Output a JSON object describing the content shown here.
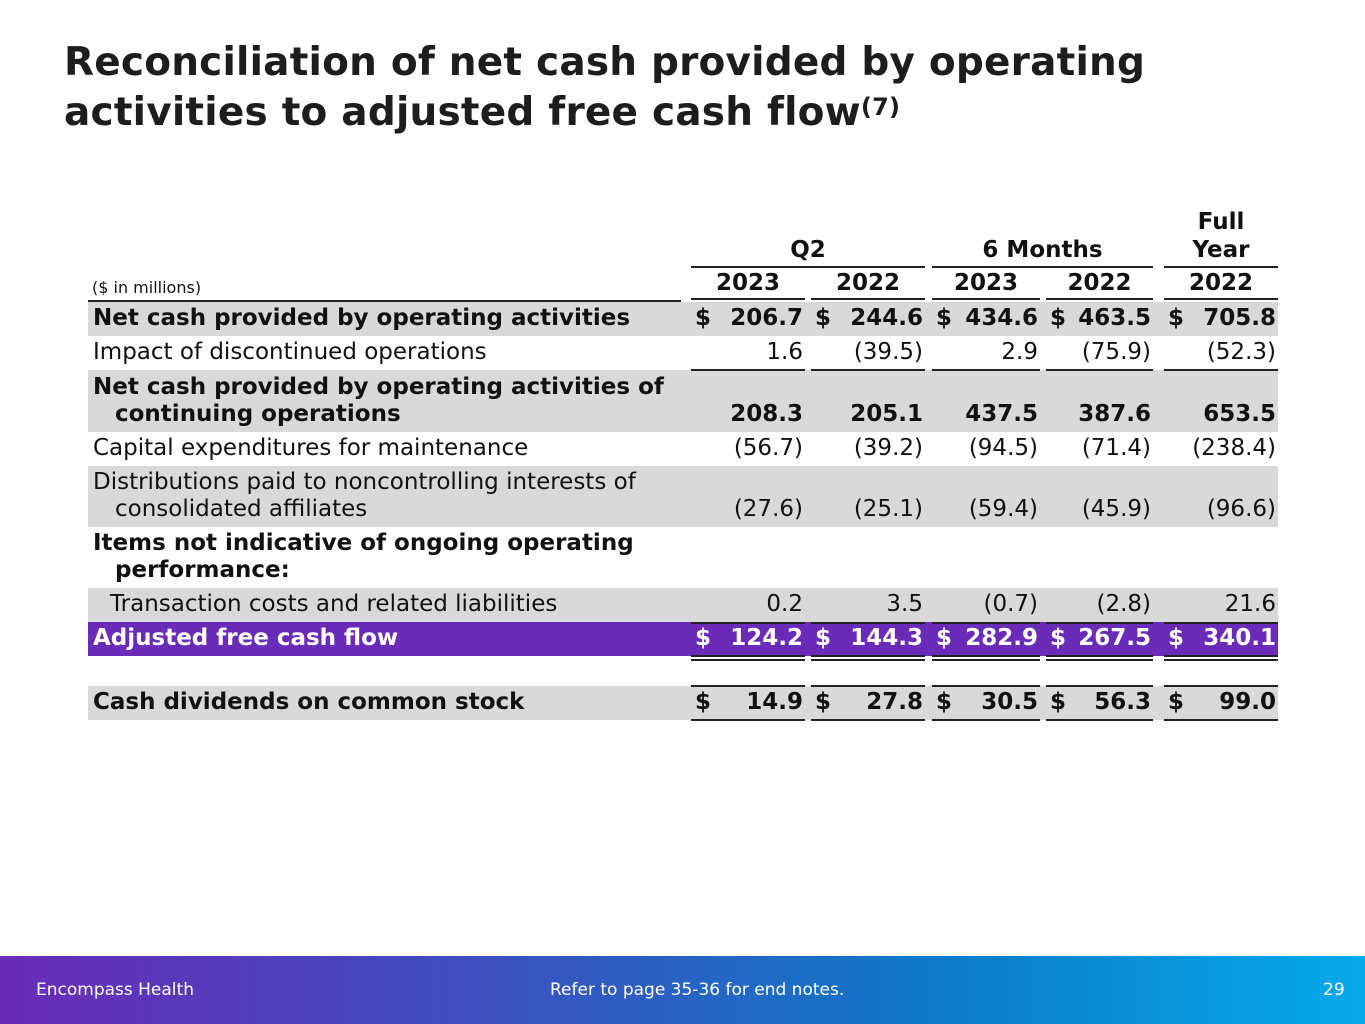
{
  "title": {
    "line1": "Reconciliation of net cash provided by operating",
    "line2": "activities to adjusted free cash flow",
    "sup": "(7)"
  },
  "table": {
    "units": "($ in millions)",
    "groups": [
      "Q2",
      "6 Months",
      "Full",
      "Year"
    ],
    "years": [
      "2023",
      "2022",
      "2023",
      "2022",
      "2022"
    ],
    "rows": [
      {
        "label": "Net cash provided by operating activities",
        "values": [
          [
            "$",
            "206.7"
          ],
          [
            "$",
            "244.6"
          ],
          [
            "$",
            "434.6"
          ],
          [
            "$",
            "463.5"
          ],
          [
            "$",
            "705.8"
          ]
        ]
      },
      {
        "label": "Impact of discontinued operations",
        "values": [
          [
            "",
            "1.6"
          ],
          [
            "",
            "(39.5)"
          ],
          [
            "",
            "2.9"
          ],
          [
            "",
            "(75.9)"
          ],
          [
            "",
            "(52.3)"
          ]
        ]
      },
      {
        "label": "Net cash provided by operating activities of",
        "label2": "continuing operations",
        "values": [
          [
            "",
            "208.3"
          ],
          [
            "",
            "205.1"
          ],
          [
            "",
            "437.5"
          ],
          [
            "",
            "387.6"
          ],
          [
            "",
            "653.5"
          ]
        ]
      },
      {
        "label": "Capital expenditures for maintenance",
        "values": [
          [
            "",
            "(56.7)"
          ],
          [
            "",
            "(39.2)"
          ],
          [
            "",
            "(94.5)"
          ],
          [
            "",
            "(71.4)"
          ],
          [
            "",
            "(238.4)"
          ]
        ]
      },
      {
        "label": "Distributions paid to noncontrolling interests of",
        "label2": "consolidated affiliates",
        "values": [
          [
            "",
            "(27.6)"
          ],
          [
            "",
            "(25.1)"
          ],
          [
            "",
            "(59.4)"
          ],
          [
            "",
            "(45.9)"
          ],
          [
            "",
            "(96.6)"
          ]
        ]
      },
      {
        "label": "Items not indicative of ongoing operating",
        "label2": "performance:",
        "values": [
          [
            "",
            ""
          ],
          [
            "",
            ""
          ],
          [
            "",
            ""
          ],
          [
            "",
            ""
          ],
          [
            "",
            ""
          ]
        ]
      },
      {
        "label": "Transaction costs and related liabilities",
        "values": [
          [
            "",
            "0.2"
          ],
          [
            "",
            "3.5"
          ],
          [
            "",
            "(0.7)"
          ],
          [
            "",
            "(2.8)"
          ],
          [
            "",
            "21.6"
          ]
        ]
      },
      {
        "label": "Adjusted free cash flow",
        "values": [
          [
            "$",
            "124.2"
          ],
          [
            "$",
            "144.3"
          ],
          [
            "$",
            "282.9"
          ],
          [
            "$",
            "267.5"
          ],
          [
            "$",
            "340.1"
          ]
        ]
      },
      {
        "label": "Cash dividends on common stock",
        "values": [
          [
            "$",
            "14.9"
          ],
          [
            "$",
            "27.8"
          ],
          [
            "$",
            "30.5"
          ],
          [
            "$",
            "56.3"
          ],
          [
            "$",
            "99.0"
          ]
        ]
      }
    ]
  },
  "colors": {
    "shade": "#d9d9d9",
    "highlight": "#6a2bb9"
  },
  "footer": {
    "company": "Encompass Health",
    "note": "Refer to page 35-36 for end notes.",
    "page": "29"
  }
}
